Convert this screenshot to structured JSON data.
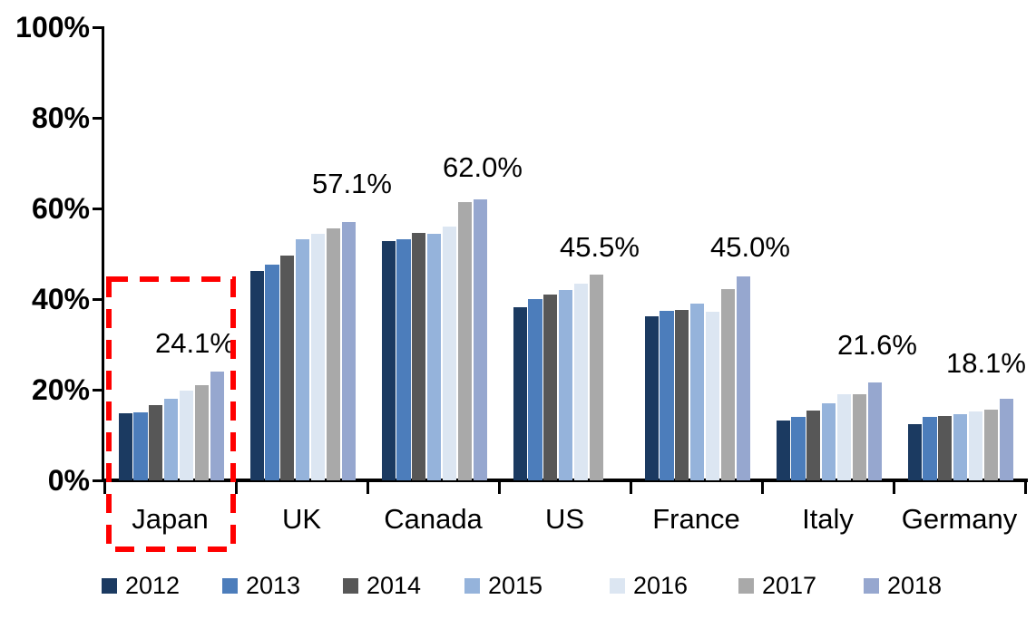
{
  "chart_data": {
    "type": "bar",
    "title": "",
    "ylabel": "",
    "xlabel": "",
    "ylim": [
      0,
      100
    ],
    "yticks": [
      "0%",
      "20%",
      "40%",
      "60%",
      "80%",
      "100%"
    ],
    "grid": false,
    "legend_position": "bottom",
    "categories": [
      "Japan",
      "UK",
      "Canada",
      "US",
      "France",
      "Italy",
      "Germany"
    ],
    "series": [
      {
        "name": "2012",
        "color": "#1B3A61",
        "values": [
          14.8,
          46.2,
          52.9,
          38.2,
          36.3,
          13.3,
          12.5
        ]
      },
      {
        "name": "2013",
        "color": "#4C7DBB",
        "values": [
          15.0,
          47.6,
          53.3,
          40.1,
          37.5,
          14.1,
          14.0
        ]
      },
      {
        "name": "2014",
        "color": "#575757",
        "values": [
          16.6,
          49.7,
          54.7,
          41.0,
          37.6,
          15.5,
          14.3
        ]
      },
      {
        "name": "2015",
        "color": "#95B3DB",
        "values": [
          18.0,
          53.2,
          54.4,
          42.1,
          39.1,
          17.0,
          14.7
        ]
      },
      {
        "name": "2016",
        "color": "#DCE6F2",
        "values": [
          19.8,
          54.4,
          56.0,
          43.5,
          37.2,
          19.0,
          15.3
        ]
      },
      {
        "name": "2017",
        "color": "#A9A9A9",
        "values": [
          21.0,
          55.6,
          61.5,
          45.5,
          42.3,
          19.1,
          15.7
        ]
      },
      {
        "name": "2018",
        "color": "#96A7CF",
        "values": [
          24.1,
          57.1,
          62.0,
          null,
          45.0,
          21.6,
          18.1
        ]
      }
    ],
    "group_value_labels": [
      "24.1%",
      "57.1%",
      "62.0%",
      "45.5%",
      "45.0%",
      "21.6%",
      "18.1%"
    ],
    "highlight": {
      "target_category": "Japan",
      "style": "dashed-box",
      "color": "#FF0000"
    }
  }
}
